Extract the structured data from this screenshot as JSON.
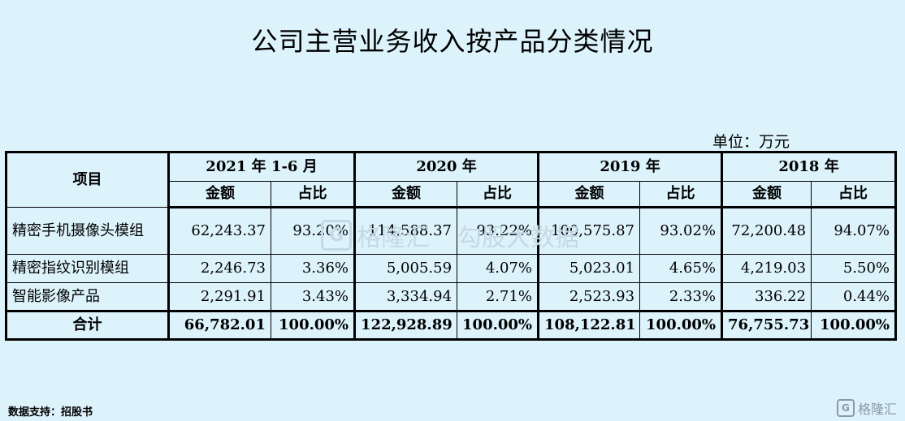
{
  "title": "公司主营业务收入按产品分类情况",
  "unit": "单位：万元",
  "table": {
    "item_header": "项目",
    "periods": [
      "2021 年 1-6 月",
      "2020 年",
      "2019 年",
      "2018 年"
    ],
    "sub_headers": {
      "amount": "金额",
      "share": "占比"
    },
    "rows": [
      {
        "name": "精密手机摄像头模组",
        "cells": [
          "62,243.37",
          "93.20%",
          "114,588.37",
          "93.22%",
          "100,575.87",
          "93.02%",
          "72,200.48",
          "94.07%"
        ]
      },
      {
        "name": "精密指纹识别模组",
        "cells": [
          "2,246.73",
          "3.36%",
          "5,005.59",
          "4.07%",
          "5,023.01",
          "4.65%",
          "4,219.03",
          "5.50%"
        ]
      },
      {
        "name": "智能影像产品",
        "cells": [
          "2,291.91",
          "3.43%",
          "3,334.94",
          "2.71%",
          "2,523.93",
          "2.33%",
          "336.22",
          "0.44%"
        ]
      }
    ],
    "total": {
      "name": "合计",
      "cells": [
        "66,782.01",
        "100.00%",
        "122,928.89",
        "100.00%",
        "108,122.81",
        "100.00%",
        "76,755.73",
        "100.00%"
      ]
    }
  },
  "watermark": {
    "logo": "G",
    "text1": "格隆汇",
    "text2": "勾股大数据"
  },
  "footer": "数据支持：招股书",
  "brand": {
    "logo": "G",
    "text": "格隆汇"
  }
}
